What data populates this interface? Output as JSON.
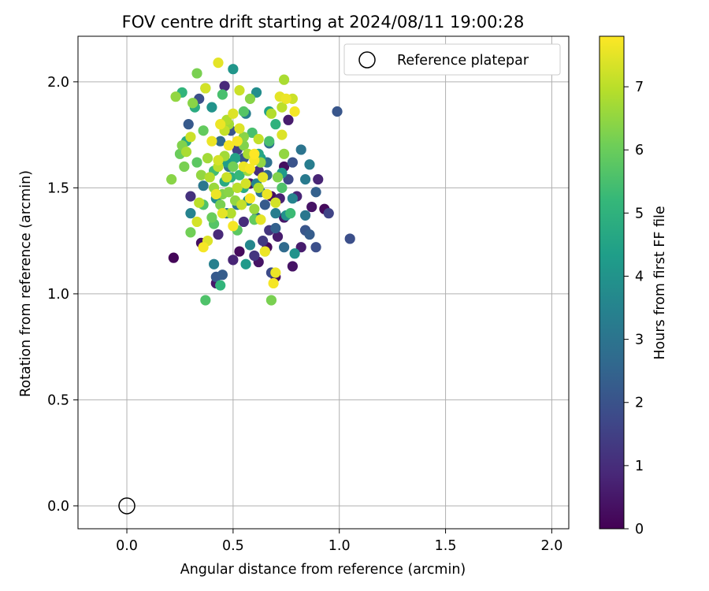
{
  "chart_data": {
    "type": "scatter",
    "title": "FOV centre drift starting at 2024/08/11 19:00:28",
    "xlabel": "Angular distance from reference (arcmin)",
    "ylabel": "Rotation from reference (arcmin)",
    "xlim": [
      -0.23,
      2.08
    ],
    "ylim": [
      -0.108,
      2.215
    ],
    "xticks": [
      0.0,
      0.5,
      1.0,
      1.5,
      2.0
    ],
    "xtick_labels": [
      "0.0",
      "0.5",
      "1.0",
      "1.5",
      "2.0"
    ],
    "yticks": [
      0.0,
      0.5,
      1.0,
      1.5,
      2.0
    ],
    "ytick_labels": [
      "0.0",
      "0.5",
      "1.0",
      "1.5",
      "2.0"
    ],
    "grid": true,
    "legend": {
      "placement": "top-right",
      "entries": [
        "Reference platepar"
      ]
    },
    "reference_point": {
      "name": "Reference platepar",
      "x": 0.0,
      "y": 0.0
    },
    "colorbar": {
      "label": "Hours from first FF file",
      "min": 0,
      "max": 7.8,
      "ticks": [
        0,
        1,
        2,
        3,
        4,
        5,
        6,
        7
      ],
      "tick_labels": [
        "0",
        "1",
        "2",
        "3",
        "4",
        "5",
        "6",
        "7"
      ],
      "colormap": "viridis"
    },
    "colormap_stops": [
      "#440154",
      "#482878",
      "#3e4989",
      "#31688e",
      "#26828e",
      "#1f9e89",
      "#35b779",
      "#6ece58",
      "#b5de2b",
      "#fde725"
    ],
    "points": [
      [
        0.22,
        1.17,
        0.1
      ],
      [
        0.35,
        1.24,
        0.3
      ],
      [
        0.42,
        1.05,
        0.5
      ],
      [
        0.53,
        1.2,
        0.2
      ],
      [
        0.62,
        1.15,
        0.4
      ],
      [
        0.66,
        1.22,
        0.2
      ],
      [
        0.71,
        1.27,
        0.6
      ],
      [
        0.7,
        1.08,
        0.3
      ],
      [
        0.74,
        1.36,
        0.5
      ],
      [
        0.78,
        1.13,
        0.4
      ],
      [
        0.82,
        1.22,
        0.6
      ],
      [
        0.84,
        1.3,
        0.7
      ],
      [
        0.8,
        1.46,
        0.8
      ],
      [
        0.87,
        1.41,
        0.4
      ],
      [
        0.93,
        1.4,
        0.2
      ],
      [
        0.9,
        1.54,
        0.8
      ],
      [
        0.74,
        1.6,
        0.3
      ],
      [
        0.76,
        1.82,
        0.6
      ],
      [
        0.46,
        1.98,
        0.9
      ],
      [
        0.58,
        1.52,
        0.5
      ],
      [
        0.55,
        1.34,
        1.0
      ],
      [
        0.67,
        1.3,
        1.2
      ],
      [
        0.43,
        1.28,
        0.9
      ],
      [
        0.3,
        1.46,
        1.1
      ],
      [
        0.62,
        1.58,
        1.0
      ],
      [
        0.72,
        1.45,
        0.7
      ],
      [
        0.64,
        1.25,
        1.3
      ],
      [
        0.5,
        1.16,
        0.8
      ],
      [
        0.68,
        1.46,
        0.3
      ],
      [
        0.6,
        1.18,
        1.2
      ],
      [
        0.95,
        1.38,
        1.6
      ],
      [
        1.05,
        1.26,
        1.9
      ],
      [
        0.99,
        1.86,
        2.1
      ],
      [
        0.89,
        1.22,
        1.9
      ],
      [
        0.86,
        1.28,
        2.3
      ],
      [
        0.84,
        1.3,
        2.1
      ],
      [
        0.89,
        1.48,
        2.4
      ],
      [
        0.78,
        1.62,
        2.0
      ],
      [
        0.76,
        1.54,
        1.7
      ],
      [
        0.68,
        1.1,
        1.8
      ],
      [
        0.42,
        1.08,
        2.2
      ],
      [
        0.45,
        1.09,
        2.3
      ],
      [
        0.29,
        1.8,
        2.2
      ],
      [
        0.34,
        1.92,
        1.9
      ],
      [
        0.49,
        1.77,
        2.0
      ],
      [
        0.55,
        1.64,
        2.1
      ],
      [
        0.61,
        1.36,
        2.5
      ],
      [
        0.7,
        1.31,
        2.4
      ],
      [
        0.65,
        1.42,
        2.2
      ],
      [
        0.52,
        1.68,
        1.5
      ],
      [
        0.82,
        1.68,
        3.0
      ],
      [
        0.84,
        1.54,
        3.2
      ],
      [
        0.86,
        1.61,
        3.3
      ],
      [
        0.78,
        1.45,
        3.5
      ],
      [
        0.84,
        1.37,
        3.1
      ],
      [
        0.41,
        1.14,
        3.4
      ],
      [
        0.47,
        1.38,
        3.2
      ],
      [
        0.58,
        1.23,
        3.6
      ],
      [
        0.63,
        1.48,
        3.0
      ],
      [
        0.67,
        1.71,
        2.8
      ],
      [
        0.56,
        1.85,
        3.3
      ],
      [
        0.48,
        1.6,
        2.9
      ],
      [
        0.3,
        1.38,
        3.5
      ],
      [
        0.36,
        1.51,
        3.1
      ],
      [
        0.7,
        1.38,
        3.3
      ],
      [
        0.74,
        1.22,
        2.7
      ],
      [
        0.6,
        1.64,
        3.4
      ],
      [
        0.52,
        1.42,
        3.1
      ],
      [
        0.44,
        1.72,
        2.7
      ],
      [
        0.66,
        1.56,
        2.6
      ],
      [
        0.79,
        1.19,
        4.0
      ],
      [
        0.75,
        1.37,
        3.9
      ],
      [
        0.73,
        1.57,
        4.2
      ],
      [
        0.5,
        2.06,
        4.1
      ],
      [
        0.67,
        1.86,
        4.4
      ],
      [
        0.61,
        1.95,
        3.8
      ],
      [
        0.4,
        1.88,
        4.0
      ],
      [
        0.47,
        1.62,
        4.3
      ],
      [
        0.56,
        1.14,
        4.2
      ],
      [
        0.63,
        1.64,
        4.4
      ],
      [
        0.28,
        1.72,
        4.7
      ],
      [
        0.49,
        1.55,
        4.9
      ],
      [
        0.44,
        1.04,
        5.1
      ],
      [
        0.37,
        1.97,
        5.2
      ],
      [
        0.32,
        1.88,
        4.8
      ],
      [
        0.7,
        1.8,
        5.0
      ],
      [
        0.77,
        1.38,
        5.3
      ],
      [
        0.26,
        1.95,
        5.1
      ],
      [
        0.62,
        1.66,
        4.6
      ],
      [
        0.55,
        1.5,
        4.8
      ],
      [
        0.37,
        0.97,
        5.6
      ],
      [
        0.33,
        1.62,
        5.8
      ],
      [
        0.36,
        1.42,
        5.6
      ],
      [
        0.45,
        1.94,
        5.5
      ],
      [
        0.55,
        1.86,
        5.7
      ],
      [
        0.6,
        1.35,
        5.9
      ],
      [
        0.67,
        1.72,
        5.5
      ],
      [
        0.73,
        1.5,
        5.6
      ],
      [
        0.52,
        1.3,
        5.8
      ],
      [
        0.41,
        1.33,
        5.7
      ],
      [
        0.25,
        1.66,
        6.0
      ],
      [
        0.26,
        1.7,
        6.3
      ],
      [
        0.27,
        1.6,
        6.2
      ],
      [
        0.3,
        1.29,
        6.1
      ],
      [
        0.31,
        1.9,
        6.4
      ],
      [
        0.33,
        2.04,
        6.2
      ],
      [
        0.23,
        1.93,
        6.5
      ],
      [
        0.21,
        1.54,
        6.4
      ],
      [
        0.68,
        0.97,
        6.2
      ],
      [
        0.71,
        1.55,
        6.3
      ],
      [
        0.74,
        1.66,
        6.5
      ],
      [
        0.4,
        1.36,
        6.0
      ],
      [
        0.45,
        1.47,
        6.3
      ],
      [
        0.5,
        1.6,
        6.1
      ],
      [
        0.55,
        1.74,
        6.4
      ],
      [
        0.6,
        1.4,
        6.6
      ],
      [
        0.65,
        1.2,
        6.2
      ],
      [
        0.35,
        1.56,
        6.5
      ],
      [
        0.48,
        1.8,
        6.7
      ],
      [
        0.58,
        1.92,
        6.4
      ],
      [
        0.74,
        2.01,
        6.8
      ],
      [
        0.73,
        1.88,
        7.0
      ],
      [
        0.78,
        1.92,
        7.2
      ],
      [
        0.75,
        1.92,
        7.6
      ],
      [
        0.72,
        1.93,
        7.5
      ],
      [
        0.73,
        1.75,
        7.4
      ],
      [
        0.68,
        1.85,
        6.9
      ],
      [
        0.62,
        1.73,
        7.1
      ],
      [
        0.57,
        1.66,
        6.8
      ],
      [
        0.52,
        1.5,
        7.0
      ],
      [
        0.46,
        1.77,
        7.1
      ],
      [
        0.43,
        1.63,
        7.3
      ],
      [
        0.39,
        1.55,
        6.9
      ],
      [
        0.34,
        1.43,
        7.0
      ],
      [
        0.3,
        1.74,
        7.2
      ],
      [
        0.28,
        1.67,
        6.8
      ],
      [
        0.37,
        1.97,
        7.3
      ],
      [
        0.43,
        2.09,
        7.5
      ],
      [
        0.47,
        1.82,
        6.9
      ],
      [
        0.53,
        1.96,
        7.2
      ],
      [
        0.69,
        1.05,
        7.7
      ],
      [
        0.7,
        1.1,
        7.6
      ],
      [
        0.65,
        1.2,
        7.6
      ],
      [
        0.63,
        1.35,
        7.5
      ],
      [
        0.58,
        1.45,
        7.7
      ],
      [
        0.55,
        1.6,
        7.6
      ],
      [
        0.5,
        1.32,
        7.7
      ],
      [
        0.45,
        1.38,
        7.5
      ],
      [
        0.42,
        1.47,
        7.6
      ],
      [
        0.38,
        1.25,
        7.4
      ],
      [
        0.36,
        1.22,
        7.7
      ],
      [
        0.33,
        1.34,
        7.3
      ],
      [
        0.4,
        1.72,
        7.6
      ],
      [
        0.48,
        1.7,
        7.7
      ],
      [
        0.53,
        1.78,
        7.4
      ],
      [
        0.6,
        1.63,
        7.7
      ],
      [
        0.64,
        1.55,
        7.5
      ],
      [
        0.66,
        1.47,
        7.6
      ],
      [
        0.7,
        1.43,
        7.3
      ],
      [
        0.79,
        1.86,
        7.7
      ],
      [
        0.58,
        1.59,
        7.7
      ],
      [
        0.6,
        1.66,
        7.8
      ],
      [
        0.44,
        1.8,
        7.6
      ],
      [
        0.5,
        1.85,
        7.4
      ],
      [
        0.52,
        1.72,
        7.7
      ],
      [
        0.47,
        1.55,
        7.2
      ],
      [
        0.43,
        1.6,
        7.0
      ],
      [
        0.56,
        1.52,
        7.3
      ],
      [
        0.62,
        1.5,
        6.9
      ],
      [
        0.54,
        1.42,
        7.1
      ],
      [
        0.41,
        1.5,
        6.6
      ],
      [
        0.46,
        1.65,
        6.7
      ],
      [
        0.51,
        1.44,
        6.5
      ],
      [
        0.57,
        1.58,
        6.6
      ],
      [
        0.63,
        1.62,
        6.5
      ],
      [
        0.48,
        1.48,
        6.4
      ],
      [
        0.38,
        1.64,
        6.7
      ],
      [
        0.44,
        1.42,
        6.2
      ],
      [
        0.49,
        1.38,
        6.9
      ],
      [
        0.55,
        1.7,
        6.3
      ],
      [
        0.36,
        1.77,
        5.9
      ],
      [
        0.41,
        1.58,
        5.4
      ],
      [
        0.53,
        1.56,
        5.2
      ],
      [
        0.59,
        1.76,
        5.5
      ],
      [
        0.46,
        1.53,
        4.7
      ],
      [
        0.51,
        1.64,
        4.5
      ],
      [
        0.57,
        1.44,
        3.9
      ],
      [
        0.61,
        1.52,
        3.6
      ],
      [
        0.42,
        1.45,
        3.8
      ],
      [
        0.66,
        1.62,
        2.9
      ]
    ]
  }
}
